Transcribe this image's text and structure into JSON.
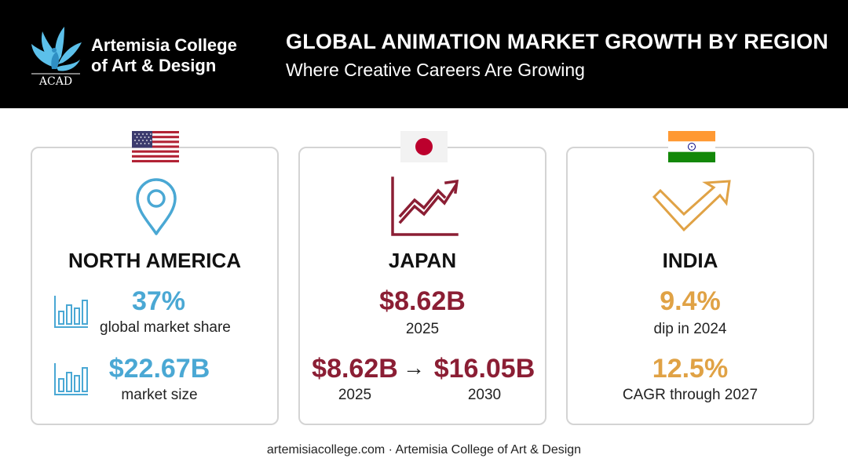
{
  "brand": {
    "name": "Artemisia College\nof Art & Design",
    "monogram": "ACAD",
    "logo_icon": "peacock-icon"
  },
  "header": {
    "title": "GLOBAL ANIMATION MARKET GROWTH BY REGION",
    "subtitle": "Where Creative Careers Are Growing"
  },
  "cards": [
    {
      "region": "NORTH AMERICA",
      "flag_icon": "us-flag-icon",
      "main_icon": "map-pin-icon",
      "accent": "#4aa8d4",
      "stats": [
        {
          "value": "37%",
          "label": "global market share",
          "icon": "bar-chart-icon"
        },
        {
          "value": "$22.67B",
          "label": "market size",
          "icon": "bar-chart-icon"
        }
      ]
    },
    {
      "region": "JAPAN",
      "flag_icon": "japan-flag-icon",
      "main_icon": "trend-up-chart-icon",
      "accent": "#8b1e34",
      "headline": {
        "value": "$8.62B",
        "label": "2025"
      },
      "growth": {
        "from_value": "$8.62B",
        "from_label": "2025",
        "arrow": "→",
        "to_value": "$16.05B",
        "to_label": "2030"
      }
    },
    {
      "region": "INDIA",
      "flag_icon": "india-flag-icon",
      "main_icon": "rebound-arrow-icon",
      "accent": "#e0a245",
      "stats": [
        {
          "value": "9.4%",
          "label": "dip in 2024"
        },
        {
          "value": "12.5%",
          "label": "CAGR through 2027"
        }
      ]
    }
  ],
  "footer": {
    "text": "artemisiacollege.com · Artemisia College of Art & Design"
  }
}
